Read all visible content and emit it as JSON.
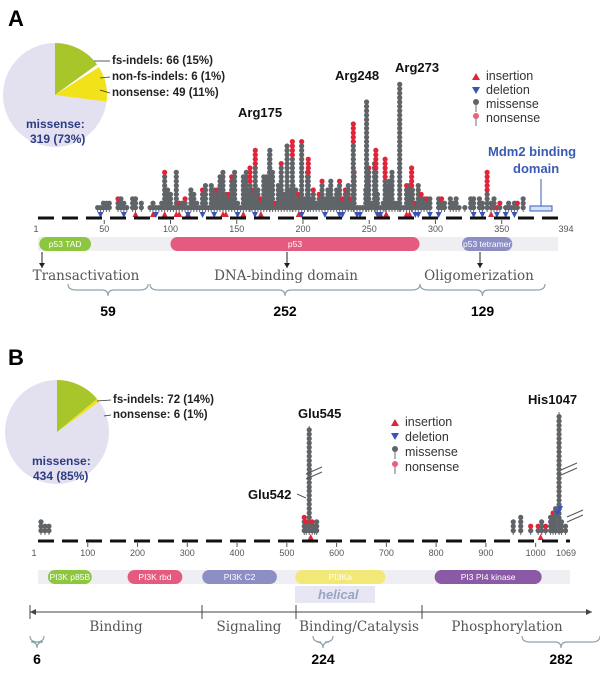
{
  "panels": [
    {
      "id": "A",
      "label": "A",
      "pie": {
        "slices": [
          {
            "label": "fs-indels: 66 (15%)",
            "pct": 15,
            "color": "#a8c62a"
          },
          {
            "label": "non-fs-indels: 6 (1%)",
            "pct": 1,
            "color": "#ffffff"
          },
          {
            "label": "nonsense: 49 (11%)",
            "pct": 11,
            "color": "#f2e21a"
          },
          {
            "label": "missense",
            "pct": 73,
            "color": "#e3e1ef"
          }
        ],
        "inner_label_1": "missense:",
        "inner_label_2": "319 (73%)"
      },
      "axis_start": "1",
      "axis_end": "394",
      "axis_ticks": [
        "50",
        "100",
        "150",
        "200",
        "250",
        "300",
        "350"
      ],
      "hotspots": [
        {
          "label": "Arg175",
          "pos": 175,
          "height": 0.46
        },
        {
          "label": "Arg248",
          "pos": 248,
          "height": 0.84
        },
        {
          "label": "Arg273",
          "pos": 273,
          "height": 0.95
        }
      ],
      "annotation": {
        "line1": "Mdm2 binding",
        "line2": "domain"
      },
      "domains": [
        {
          "label": "p53 TAD",
          "start": 1,
          "end": 40,
          "color": "#8dc63f"
        },
        {
          "label": "p53",
          "start": 100,
          "end": 288,
          "color": "#e45b7f"
        },
        {
          "label": "p53 tetramer",
          "start": 320,
          "end": 358,
          "color": "#8e8ec6"
        }
      ],
      "functions": [
        {
          "label": "Transactivation",
          "start": 1,
          "end": 59
        },
        {
          "label": "DNA-binding domain",
          "start": 100,
          "end": 300
        },
        {
          "label": "Oligomerization",
          "start": 310,
          "end": 380
        }
      ],
      "brackets": [
        {
          "value": "59",
          "start": 30,
          "end": 100
        },
        {
          "value": "252",
          "start": 100,
          "end": 305
        },
        {
          "value": "129",
          "start": 305,
          "end": 380
        }
      ]
    },
    {
      "id": "B",
      "label": "B",
      "pie": {
        "slices": [
          {
            "label": "fs-indels: 72 (14%)",
            "pct": 14,
            "color": "#a8c62a"
          },
          {
            "label": "nonsense: 6 (1%)",
            "pct": 1,
            "color": "#f2e21a"
          },
          {
            "label": "missense",
            "pct": 85,
            "color": "#e3e1ef"
          }
        ],
        "inner_label_1": "missense:",
        "inner_label_2": "434 (85%)"
      },
      "axis_start": "1",
      "axis_end": "1069",
      "axis_ticks": [
        "100",
        "200",
        "300",
        "400",
        "500",
        "600",
        "700",
        "800",
        "900",
        "1000"
      ],
      "hotspots": [
        {
          "label": "Glu545",
          "pos": 545,
          "height": 0.86
        },
        {
          "label": "Glu542",
          "pos": 542,
          "height": 0.33
        },
        {
          "label": "His1047",
          "pos": 1047,
          "height": 0.9
        }
      ],
      "annotation": {
        "line1": "helical",
        "line2": ""
      },
      "domains": [
        {
          "label": "PI3K p85B",
          "start": 20,
          "end": 108,
          "color": "#8dc63f"
        },
        {
          "label": "PI3K rbd",
          "start": 180,
          "end": 290,
          "color": "#e45b7f"
        },
        {
          "label": "PI3K C2",
          "start": 330,
          "end": 480,
          "color": "#8e8ec6"
        },
        {
          "label": "PI3Ka",
          "start": 517,
          "end": 698,
          "color": "#f2e878"
        },
        {
          "label": "PI3 PI4 kinase",
          "start": 797,
          "end": 1012,
          "color": "#8a5aa6"
        }
      ],
      "functions": [
        {
          "label": "Binding",
          "start": 1,
          "end": 330
        },
        {
          "label": "Signaling",
          "start": 330,
          "end": 520
        },
        {
          "label": "Binding/Catalysis",
          "start": 520,
          "end": 735
        },
        {
          "label": "Phosphorylation",
          "start": 735,
          "end": 1069
        }
      ],
      "brackets": [
        {
          "value": "6",
          "start": 1,
          "end": 20
        },
        {
          "value": "224",
          "start": 520,
          "end": 575
        },
        {
          "value": "282",
          "start": 955,
          "end": 1050
        }
      ]
    }
  ],
  "legend": [
    {
      "label": "insertion",
      "marker": "triangle-up",
      "color": "#e0243a"
    },
    {
      "label": "deletion",
      "marker": "triangle-down",
      "color": "#3b53b8"
    },
    {
      "label": "missense",
      "marker": "dot",
      "color": "#5f6468"
    },
    {
      "label": "nonsense",
      "marker": "dot",
      "color": "#e8607d"
    }
  ],
  "colors": {
    "stem": "#6c6c6c",
    "missense": "#5f6468",
    "nonsense_red": "#e0243a",
    "axis": "#111111",
    "bracket": "#8aa3ab"
  }
}
